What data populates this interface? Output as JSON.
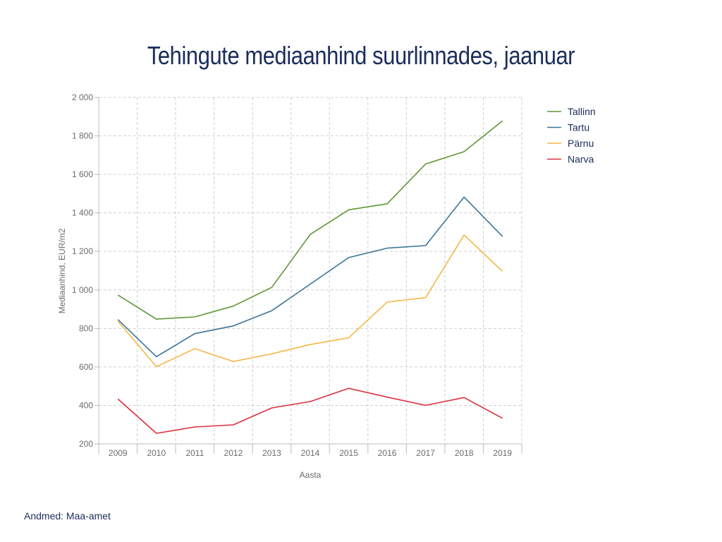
{
  "source_note": "Andmed: Maa-amet",
  "chart_data": {
    "type": "line",
    "title": "Tehingute mediaanhind suurlinnades, jaanuar",
    "xlabel": "Aasta",
    "ylabel": "Mediaanhind, EUR/m2",
    "ylim": [
      200,
      2000
    ],
    "yticks": [
      200,
      400,
      600,
      800,
      1000,
      1200,
      1400,
      1600,
      1800,
      2000
    ],
    "ytick_labels": [
      "200",
      "400",
      "600",
      "800",
      "1 000",
      "1 200",
      "1 400",
      "1 600",
      "1 800",
      "2 000"
    ],
    "grid": true,
    "legend_position": "right",
    "categories": [
      "2009",
      "2010",
      "2011",
      "2012",
      "2013",
      "2014",
      "2015",
      "2016",
      "2017",
      "2018",
      "2019"
    ],
    "series": [
      {
        "name": "Tallinn",
        "color": "#5f9636",
        "values": [
          973,
          848,
          860,
          916,
          1013,
          1288,
          1416,
          1447,
          1654,
          1718,
          1878
        ]
      },
      {
        "name": "Tartu",
        "color": "#3c7497",
        "values": [
          846,
          653,
          773,
          813,
          892,
          1030,
          1168,
          1217,
          1230,
          1482,
          1278
        ]
      },
      {
        "name": "Pärnu",
        "color": "#f5b749",
        "values": [
          838,
          601,
          695,
          628,
          668,
          716,
          751,
          937,
          960,
          1285,
          1096
        ]
      },
      {
        "name": "Narva",
        "color": "#d8313f",
        "values": [
          433,
          255,
          288,
          299,
          387,
          420,
          489,
          443,
          400,
          441,
          333
        ]
      }
    ]
  }
}
